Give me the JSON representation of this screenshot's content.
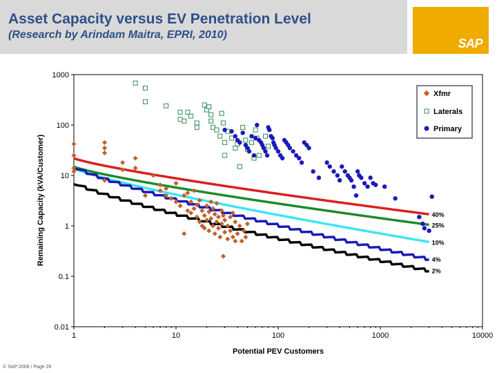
{
  "header": {
    "title": "Asset Capacity versus EV Penetration Level",
    "subtitle": "(Research by Arindam Maitra, EPRI, 2010)"
  },
  "logo": {
    "text": "SAP"
  },
  "footer": {
    "text": "© SAP 2008 / Page 26"
  },
  "colors": {
    "xfmr": "#c0622a",
    "laterals": "#2e8b57",
    "primary": "#1a1ab8",
    "c40": "#d9201e",
    "c25": "#1e8a2a",
    "c10": "#3ee6f0",
    "c4": "#1a1ab8",
    "c2": "#000000"
  },
  "chart_data": {
    "type": "scatter",
    "xscale": "log",
    "yscale": "log",
    "xlim": [
      1,
      10000
    ],
    "ylim": [
      0.01,
      1000
    ],
    "xlabel": "Potential PEV Customers",
    "ylabel": "Remaining Capacity (kVA/Customer)",
    "xticks": [
      "1",
      "10",
      "100",
      "1000",
      "10000"
    ],
    "yticks": [
      "0.01",
      "0.1",
      "1",
      "10",
      "100",
      "1000"
    ],
    "legend": {
      "placement": "top-right",
      "entries": [
        "Xfmr",
        "Laterals",
        "Primary"
      ]
    },
    "curves": [
      {
        "name": "40%",
        "color": "c40",
        "y_at_1": 22,
        "y_at_max": 1.7,
        "x_max": 3000,
        "steps": 0
      },
      {
        "name": "25%",
        "color": "c25",
        "y_at_1": 15,
        "y_at_max": 1.05,
        "x_max": 3000,
        "steps": 0
      },
      {
        "name": "10%",
        "color": "c10",
        "y_at_1": 14,
        "y_at_max": 0.48,
        "x_max": 3000,
        "steps": 0
      },
      {
        "name": "4%",
        "color": "c4",
        "y_at_1": 15,
        "y_at_max": 0.22,
        "x_max": 3000,
        "steps": 1
      },
      {
        "name": "2%",
        "color": "c2",
        "y_at_1": 7.2,
        "y_at_max": 0.13,
        "x_max": 3000,
        "steps": 1
      }
    ],
    "series": [
      {
        "name": "Xfmr",
        "marker": "diamond",
        "color": "xfmr",
        "points": [
          [
            1,
            42
          ],
          [
            1,
            25
          ],
          [
            1,
            14
          ],
          [
            1,
            12
          ],
          [
            2,
            45
          ],
          [
            2,
            35
          ],
          [
            2,
            28
          ],
          [
            2,
            8
          ],
          [
            3,
            18
          ],
          [
            3,
            13
          ],
          [
            4,
            22
          ],
          [
            4,
            14
          ],
          [
            5,
            4
          ],
          [
            6,
            10
          ],
          [
            7,
            5
          ],
          [
            7,
            6.5
          ],
          [
            8,
            5.5
          ],
          [
            8,
            4
          ],
          [
            9,
            3.5
          ],
          [
            10,
            3
          ],
          [
            10,
            7
          ],
          [
            11,
            2.5
          ],
          [
            12,
            4
          ],
          [
            12,
            0.7
          ],
          [
            13,
            2
          ],
          [
            13,
            4.5
          ],
          [
            14,
            1.8
          ],
          [
            14,
            3
          ],
          [
            15,
            2.2
          ],
          [
            15,
            5
          ],
          [
            16,
            1.5
          ],
          [
            16,
            2.6
          ],
          [
            17,
            1.2
          ],
          [
            17,
            3.2
          ],
          [
            18,
            1
          ],
          [
            18,
            2
          ],
          [
            19,
            0.9
          ],
          [
            19,
            1.6
          ],
          [
            20,
            1.3
          ],
          [
            20,
            2.5
          ],
          [
            21,
            0.8
          ],
          [
            21,
            1.9
          ],
          [
            22,
            1.4
          ],
          [
            22,
            3
          ],
          [
            23,
            1
          ],
          [
            23,
            2.2
          ],
          [
            24,
            0.7
          ],
          [
            24,
            1.7
          ],
          [
            25,
            1.2
          ],
          [
            25,
            2.8
          ],
          [
            26,
            0.9
          ],
          [
            26,
            1.5
          ],
          [
            27,
            0.6
          ],
          [
            28,
            1.1
          ],
          [
            28,
            2
          ],
          [
            29,
            0.25
          ],
          [
            29,
            1.6
          ],
          [
            30,
            0.75
          ],
          [
            30,
            1.3
          ],
          [
            32,
            0.55
          ],
          [
            32,
            1
          ],
          [
            34,
            0.8
          ],
          [
            34,
            1.5
          ],
          [
            36,
            0.6
          ],
          [
            36,
            1.8
          ],
          [
            38,
            0.5
          ],
          [
            38,
            1.2
          ],
          [
            40,
            0.7
          ],
          [
            42,
            1
          ],
          [
            44,
            0.5
          ],
          [
            46,
            0.8
          ],
          [
            48,
            0.6
          ],
          [
            50,
            1.1
          ]
        ]
      },
      {
        "name": "Laterals",
        "marker": "square-open",
        "color": "laterals",
        "points": [
          [
            4,
            680
          ],
          [
            5,
            540
          ],
          [
            5,
            290
          ],
          [
            8,
            240
          ],
          [
            11,
            180
          ],
          [
            11,
            130
          ],
          [
            12,
            120
          ],
          [
            13,
            180
          ],
          [
            14,
            150
          ],
          [
            16,
            110
          ],
          [
            16,
            90
          ],
          [
            19,
            250
          ],
          [
            20,
            200
          ],
          [
            21,
            230
          ],
          [
            22,
            160
          ],
          [
            22,
            120
          ],
          [
            23,
            90
          ],
          [
            25,
            80
          ],
          [
            27,
            60
          ],
          [
            28,
            170
          ],
          [
            29,
            110
          ],
          [
            30,
            45
          ],
          [
            30,
            25
          ],
          [
            32,
            75
          ],
          [
            35,
            55
          ],
          [
            38,
            35
          ],
          [
            40,
            42
          ],
          [
            42,
            15
          ],
          [
            45,
            90
          ],
          [
            48,
            50
          ],
          [
            50,
            33
          ],
          [
            55,
            45
          ],
          [
            58,
            22
          ],
          [
            60,
            80
          ],
          [
            62,
            55
          ],
          [
            65,
            25
          ],
          [
            75,
            60
          ],
          [
            80,
            38
          ]
        ]
      },
      {
        "name": "Primary",
        "marker": "dot",
        "color": "primary",
        "points": [
          [
            30,
            80
          ],
          [
            35,
            75
          ],
          [
            38,
            60
          ],
          [
            40,
            50
          ],
          [
            42,
            45
          ],
          [
            45,
            70
          ],
          [
            48,
            40
          ],
          [
            50,
            35
          ],
          [
            52,
            30
          ],
          [
            55,
            60
          ],
          [
            58,
            25
          ],
          [
            60,
            55
          ],
          [
            62,
            100
          ],
          [
            65,
            50
          ],
          [
            68,
            45
          ],
          [
            70,
            40
          ],
          [
            72,
            35
          ],
          [
            75,
            30
          ],
          [
            78,
            25
          ],
          [
            80,
            90
          ],
          [
            82,
            80
          ],
          [
            85,
            60
          ],
          [
            88,
            55
          ],
          [
            90,
            45
          ],
          [
            92,
            40
          ],
          [
            95,
            35
          ],
          [
            100,
            30
          ],
          [
            105,
            25
          ],
          [
            110,
            22
          ],
          [
            115,
            50
          ],
          [
            120,
            45
          ],
          [
            125,
            40
          ],
          [
            130,
            35
          ],
          [
            140,
            30
          ],
          [
            150,
            25
          ],
          [
            160,
            22
          ],
          [
            170,
            18
          ],
          [
            180,
            45
          ],
          [
            190,
            40
          ],
          [
            200,
            35
          ],
          [
            220,
            12
          ],
          [
            250,
            9
          ],
          [
            300,
            18
          ],
          [
            320,
            15
          ],
          [
            350,
            12
          ],
          [
            380,
            10
          ],
          [
            400,
            8
          ],
          [
            420,
            15
          ],
          [
            450,
            12
          ],
          [
            480,
            10
          ],
          [
            500,
            9
          ],
          [
            520,
            8
          ],
          [
            550,
            6
          ],
          [
            580,
            4
          ],
          [
            600,
            12
          ],
          [
            620,
            10
          ],
          [
            650,
            9
          ],
          [
            700,
            7
          ],
          [
            750,
            6
          ],
          [
            800,
            9
          ],
          [
            850,
            7
          ],
          [
            900,
            6.5
          ],
          [
            1100,
            6
          ],
          [
            1400,
            3.5
          ],
          [
            2400,
            1.5
          ],
          [
            2600,
            1.1
          ],
          [
            2700,
            0.9
          ],
          [
            3000,
            0.8
          ],
          [
            3200,
            3.8
          ]
        ]
      }
    ]
  }
}
